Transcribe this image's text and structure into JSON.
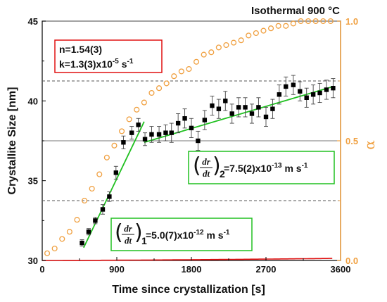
{
  "chart_data": {
    "type": "scatter",
    "title": "Isothermal 900 °C",
    "xlabel": "Time since crystallization [s]",
    "ylabel": "Crystallite Size [nm]",
    "y2label": "α",
    "xlim": [
      0,
      3600
    ],
    "ylim": [
      30,
      45
    ],
    "y2lim": [
      0,
      1.0
    ],
    "x_ticks": [
      "0",
      "900",
      "1800",
      "2700",
      "3600"
    ],
    "y_ticks": [
      "30",
      "35",
      "40",
      "45"
    ],
    "y2_ticks": [
      "0.0",
      "0.5",
      "1.0"
    ],
    "colors": {
      "size": "#000000",
      "alpha": "#f0a040",
      "avrami_fit": "#e01010",
      "linear_fit": "#20c020"
    },
    "series": [
      {
        "name": "Crystallite size",
        "marker": "square",
        "axis": "left",
        "x": [
          480,
          560,
          640,
          730,
          810,
          890,
          980,
          1080,
          1160,
          1240,
          1320,
          1410,
          1490,
          1560,
          1640,
          1720,
          1800,
          1880,
          1960,
          2050,
          2130,
          2210,
          2290,
          2370,
          2450,
          2530,
          2610,
          2700,
          2780,
          2860,
          2940,
          3030,
          3110,
          3190,
          3270,
          3350,
          3430,
          3510
        ],
        "y": [
          31.1,
          31.8,
          32.5,
          33.2,
          34.0,
          35.5,
          37.4,
          38.0,
          38.5,
          37.6,
          37.9,
          37.9,
          38.0,
          38.0,
          38.6,
          38.9,
          38.3,
          37.5,
          38.8,
          39.7,
          39.5,
          40.0,
          39.2,
          39.6,
          39.6,
          39.2,
          39.6,
          39.0,
          39.5,
          40.4,
          40.9,
          41.0,
          40.6,
          40.2,
          40.4,
          40.5,
          40.7,
          40.8
        ],
        "err": [
          0.2,
          0.2,
          0.2,
          0.3,
          0.3,
          0.4,
          0.4,
          0.4,
          0.4,
          0.4,
          0.5,
          0.5,
          0.5,
          0.6,
          0.6,
          0.6,
          0.6,
          0.6,
          0.6,
          0.6,
          0.6,
          0.6,
          0.6,
          0.6,
          0.6,
          0.6,
          0.6,
          0.6,
          0.6,
          0.6,
          0.6,
          0.6,
          0.6,
          0.6,
          0.6,
          0.6,
          0.6,
          0.6
        ]
      },
      {
        "name": "α",
        "marker": "circle-open",
        "axis": "right",
        "x": [
          60,
          150,
          240,
          330,
          420,
          510,
          600,
          690,
          780,
          870,
          960,
          1050,
          1140,
          1230,
          1320,
          1410,
          1500,
          1590,
          1680,
          1770,
          1860,
          1950,
          2040,
          2130,
          2220,
          2310,
          2400,
          2490,
          2580,
          2670,
          2760,
          2850,
          2940,
          3030,
          3120,
          3210,
          3300,
          3390,
          3480
        ],
        "y": [
          0.03,
          0.05,
          0.09,
          0.12,
          0.17,
          0.25,
          0.3,
          0.36,
          0.43,
          0.48,
          0.54,
          0.59,
          0.63,
          0.66,
          0.7,
          0.72,
          0.74,
          0.77,
          0.79,
          0.8,
          0.83,
          0.86,
          0.87,
          0.89,
          0.9,
          0.91,
          0.92,
          0.94,
          0.95,
          0.96,
          0.97,
          0.98,
          0.98,
          0.99,
          1.0,
          1.0,
          1.0,
          1.0,
          1.0
        ]
      }
    ],
    "fits": [
      {
        "type": "avrami",
        "axis": "right",
        "n": 1.54,
        "k": 1.3e-05
      },
      {
        "type": "linear",
        "axis": "left",
        "x": [
          500,
          1230
        ],
        "y": [
          30.8,
          38.7
        ]
      },
      {
        "type": "linear",
        "axis": "left",
        "x": [
          1230,
          3510
        ],
        "y": [
          37.4,
          40.9
        ]
      }
    ],
    "reference_lines": [
      {
        "axis": "right",
        "y": 1.0,
        "style": "solid"
      },
      {
        "axis": "right",
        "y": 0.5,
        "style": "solid"
      },
      {
        "axis": "right",
        "y": 0.75,
        "style": "dashed"
      },
      {
        "axis": "right",
        "y": 0.25,
        "style": "dashed"
      }
    ],
    "annotations": {
      "avrami_n": "n=1.54(3)",
      "avrami_k": "k=1.3(3)x10",
      "avrami_k_exp": "-5",
      "avrami_k_unit": " s",
      "avrami_k_unit_exp": "-1",
      "rate2_numer": "dr",
      "rate2_denom": "dt",
      "rate2_sub": "2",
      "rate2_value": "=7.5(2)x10",
      "rate2_exp": "-13",
      "rate2_unit": " m s",
      "rate2_unit_exp": "-1",
      "rate1_numer": "dr",
      "rate1_denom": "dt",
      "rate1_sub": "1",
      "rate1_value": "=5.0(7)x10",
      "rate1_exp": "-12",
      "rate1_unit": " m s",
      "rate1_unit_exp": "-1"
    }
  }
}
